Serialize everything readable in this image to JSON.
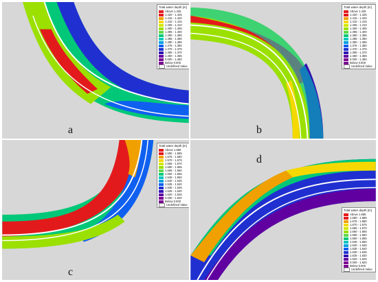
{
  "colors": {
    "background": "#d7d7d7",
    "scale": [
      "#e31a1c",
      "#f0a000",
      "#f5d800",
      "#d4e800",
      "#9be000",
      "#5ad84a",
      "#00c878",
      "#00c8c0",
      "#00a0e0",
      "#1060f0",
      "#2030d0",
      "#3010b0",
      "#6000a0",
      "#7a0090"
    ],
    "centerline": "#ffffff"
  },
  "panels": [
    {
      "id": "a",
      "label": "a",
      "legend": {
        "title": "Total water depth [m]",
        "items": [
          "Above 1.425",
          "1.420 - 1.425",
          "1.415 - 1.420",
          "1.410 - 1.415",
          "1.405 - 1.410",
          "1.400 - 1.405",
          "1.395 - 1.400",
          "1.390 - 1.395",
          "1.385 - 1.390",
          "1.380 - 1.385",
          "1.375 - 1.380",
          "1.370 - 1.375",
          "1.365 - 1.370",
          "1.360 - 1.365",
          "0.000 - 1.360",
          "Below 0.000",
          "Undefined Value"
        ]
      }
    },
    {
      "id": "b",
      "label": "b",
      "legend": {
        "title": "Total water depth [m]",
        "items": [
          "Above 1.425",
          "1.420 - 1.425",
          "1.415 - 1.420",
          "1.410 - 1.415",
          "1.405 - 1.410",
          "1.400 - 1.405",
          "1.395 - 1.400",
          "1.390 - 1.395",
          "1.385 - 1.390",
          "1.380 - 1.385",
          "1.375 - 1.380",
          "1.370 - 1.375",
          "1.365 - 1.370",
          "1.360 - 1.365",
          "0.000 - 1.360",
          "Below 0.000",
          "Undefined Value"
        ]
      }
    },
    {
      "id": "c",
      "label": "c",
      "legend": {
        "title": "Total water depth [m]",
        "items": [
          "Above 1.585",
          "1.580 - 1.585",
          "1.575 - 1.580",
          "1.570 - 1.575",
          "1.565 - 1.570",
          "1.560 - 1.565",
          "1.555 - 1.560",
          "1.550 - 1.555",
          "1.545 - 1.550",
          "1.540 - 1.545",
          "1.535 - 1.540",
          "1.530 - 1.535",
          "1.525 - 1.530",
          "1.520 - 1.525",
          "0.000 - 1.520",
          "Below 0.000",
          "Undefined Value"
        ]
      }
    },
    {
      "id": "d",
      "label": "d",
      "legend": {
        "title": "Total water depth [m]",
        "items": [
          "Above 1.685",
          "1.680 - 1.685",
          "1.675 - 1.680",
          "1.670 - 1.675",
          "1.665 - 1.670",
          "1.660 - 1.665",
          "1.655 - 1.660",
          "1.650 - 1.655",
          "1.645 - 1.650",
          "1.640 - 1.645",
          "1.635 - 1.640",
          "1.630 - 1.635",
          "1.625 - 1.630",
          "1.620 - 1.625",
          "0.000 - 1.620",
          "Below 0.000",
          "Undefined Value"
        ]
      }
    }
  ]
}
